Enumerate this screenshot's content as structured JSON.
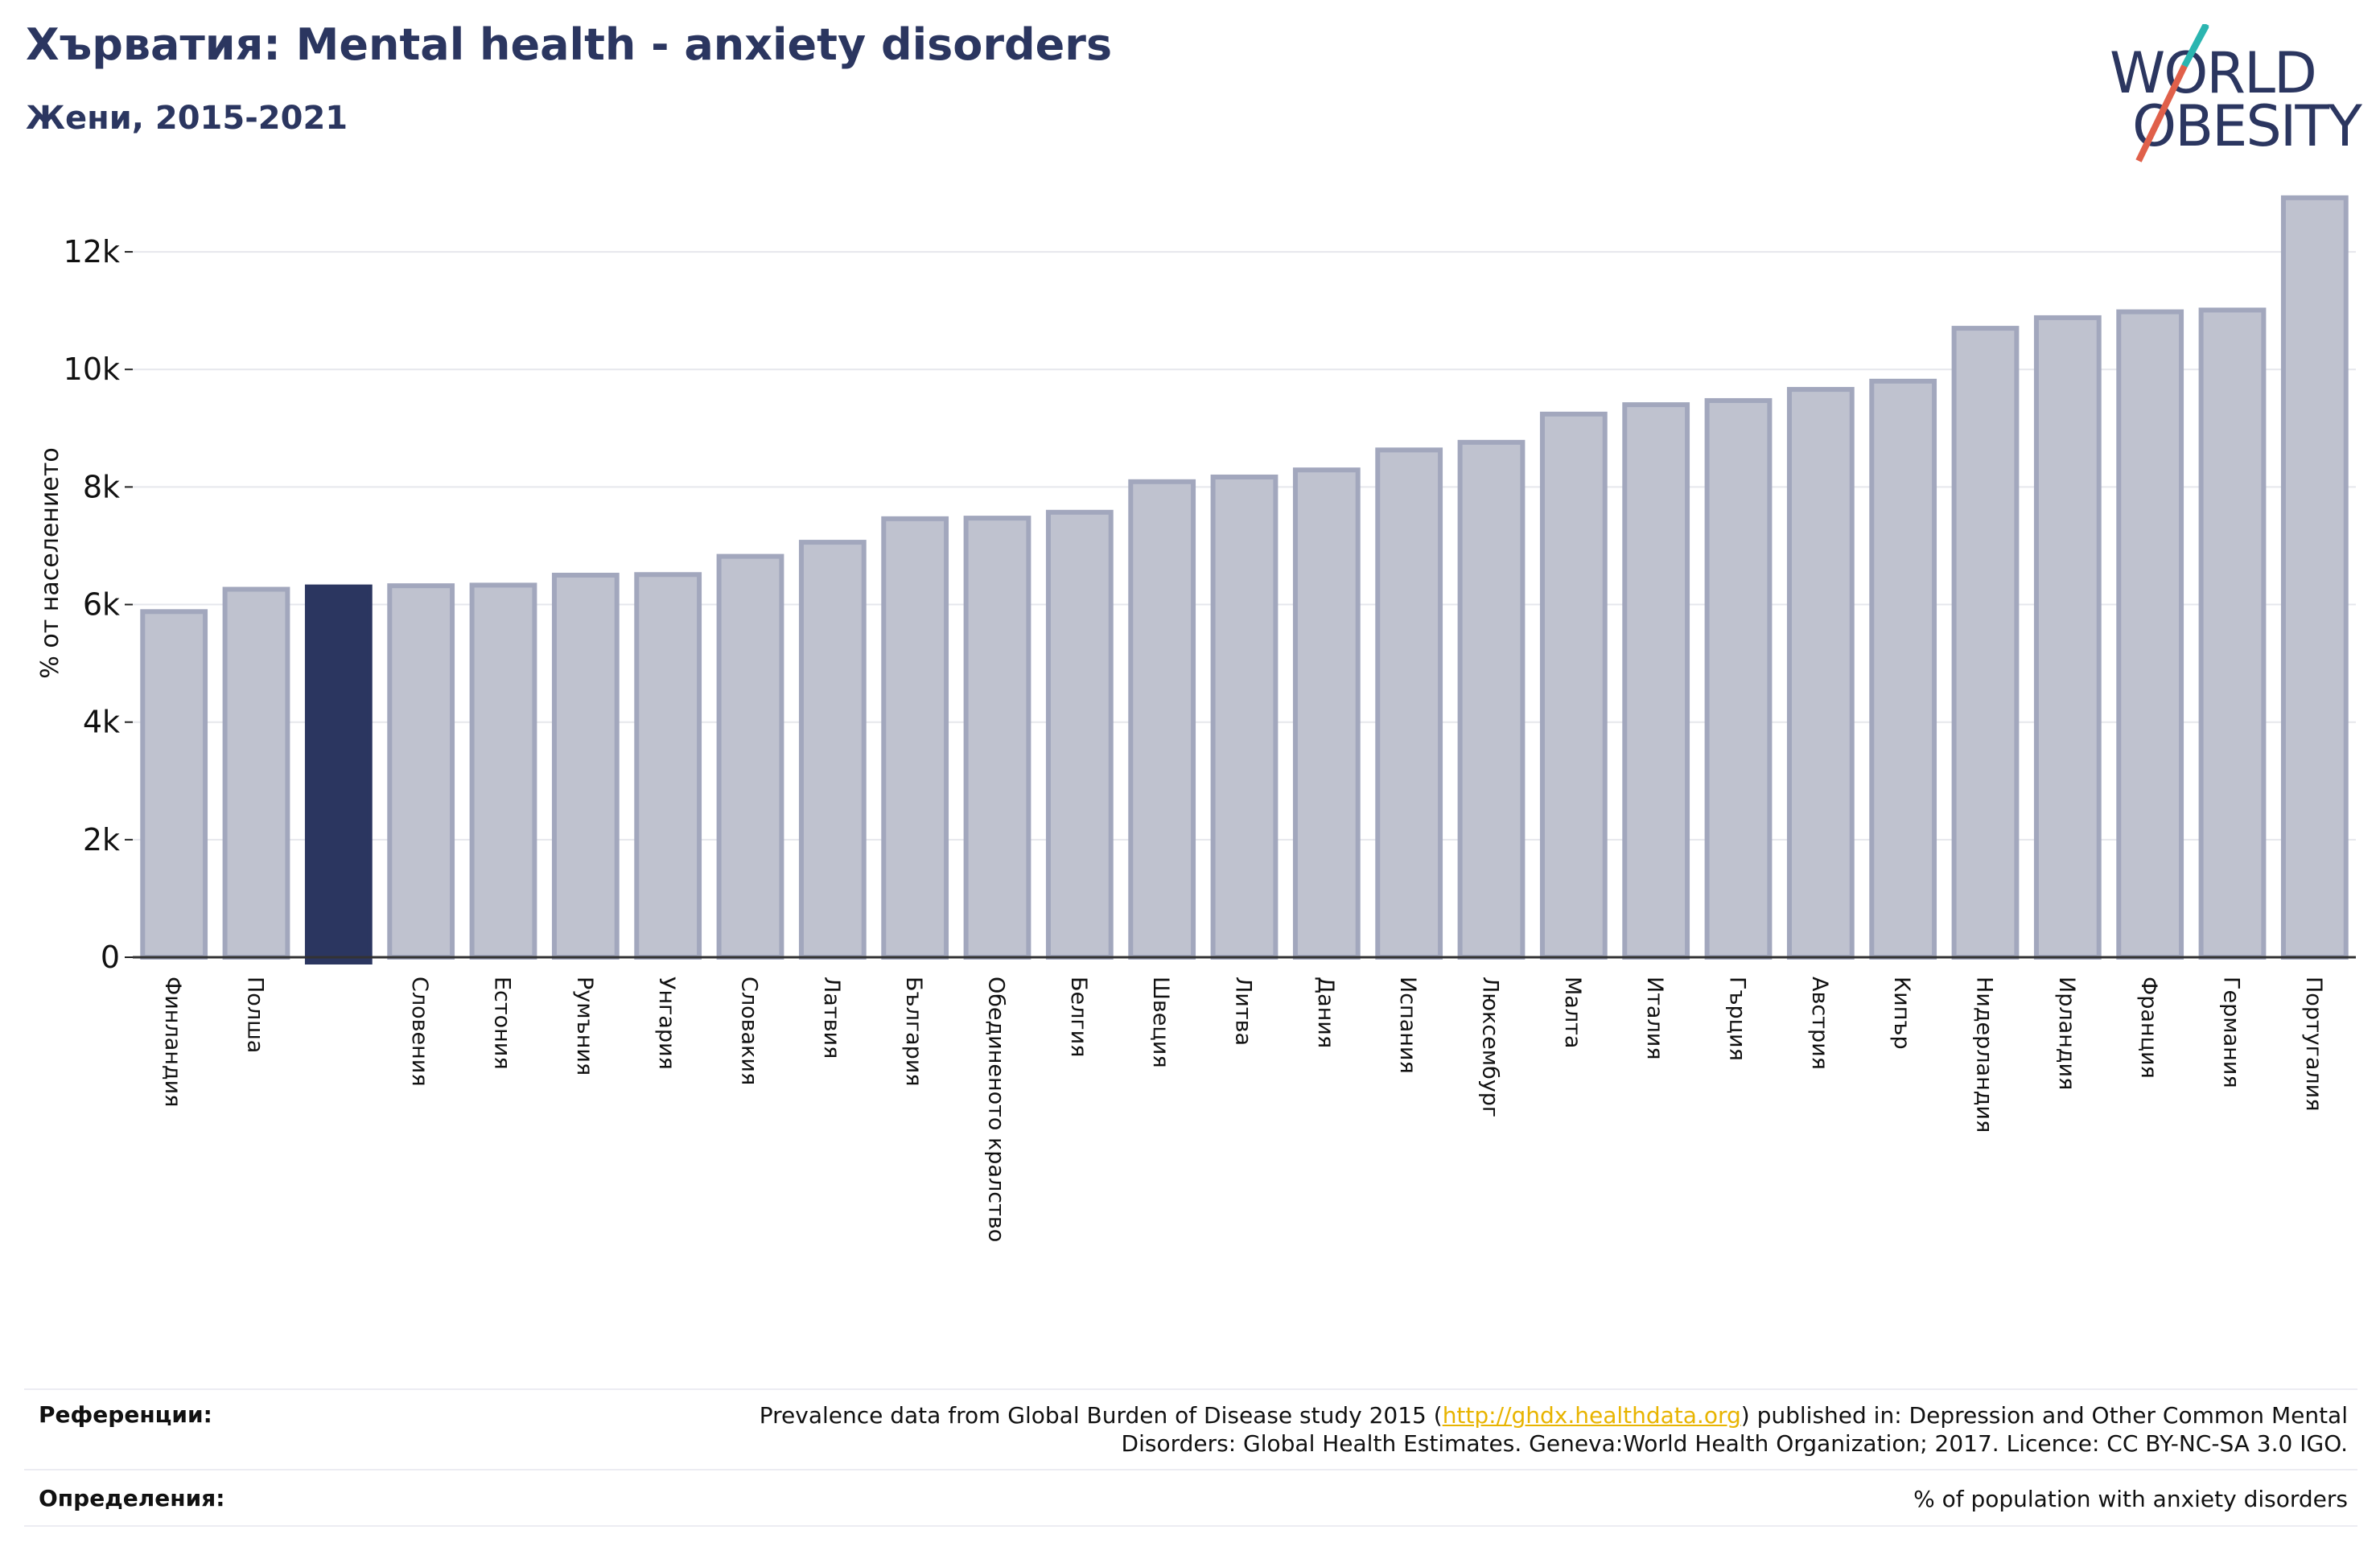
{
  "header": {
    "title": "Хърватия: Mental health - anxiety disorders",
    "subtitle": "Жени, 2015-2021"
  },
  "logo": {
    "line1": "WORLD",
    "line2": "OBESITY"
  },
  "colors": {
    "title": "#2b3660",
    "bar": "#bfc2cf",
    "bar_border": "#a2a7bd",
    "highlight": "#2b3660",
    "logo_teal": "#2bb5b0",
    "logo_red": "#e0604a",
    "link": "#e8b400"
  },
  "chart_data": {
    "type": "bar",
    "ylabel": "% от населението",
    "ylim": [
      0,
      13000
    ],
    "yticks": [
      0,
      2000,
      4000,
      6000,
      8000,
      10000,
      12000
    ],
    "ytick_labels": [
      "0",
      "2k",
      "4k",
      "6k",
      "8k",
      "10k",
      "12k"
    ],
    "grid": true,
    "categories": [
      "Финландия",
      "Полша",
      "",
      "Словения",
      "Естония",
      "Румъния",
      "Унгария",
      "Словакия",
      "Латвия",
      "България",
      "Обединеното кралство",
      "Белгия",
      "Швеция",
      "Литва",
      "Дания",
      "Испания",
      "Люксембург",
      "Малта",
      "Италия",
      "Гърция",
      "Австрия",
      "Кипър",
      "Нидерландия",
      "Ирландия",
      "Франция",
      "Германия",
      "Португалия"
    ],
    "values": [
      5880,
      6260,
      6300,
      6320,
      6330,
      6500,
      6510,
      6820,
      7060,
      7460,
      7470,
      7570,
      8090,
      8170,
      8290,
      8630,
      8760,
      9240,
      9400,
      9470,
      9660,
      9800,
      10700,
      10880,
      10980,
      11010,
      12920
    ],
    "highlight_index": 2
  },
  "footer": {
    "references_label": "Референции:",
    "references_pre": "Prevalence data from Global Burden of Disease study 2015 (",
    "references_link": "http://ghdx.healthdata.org",
    "references_post": ") published in: Depression and Other Common Mental",
    "references_line2": "Disorders: Global Health Estimates. Geneva:World Health Organization; 2017. Licence: CC BY-NC-SA 3.0 IGO.",
    "definitions_label": "Определения:",
    "definitions_text": "% of population with anxiety disorders"
  }
}
